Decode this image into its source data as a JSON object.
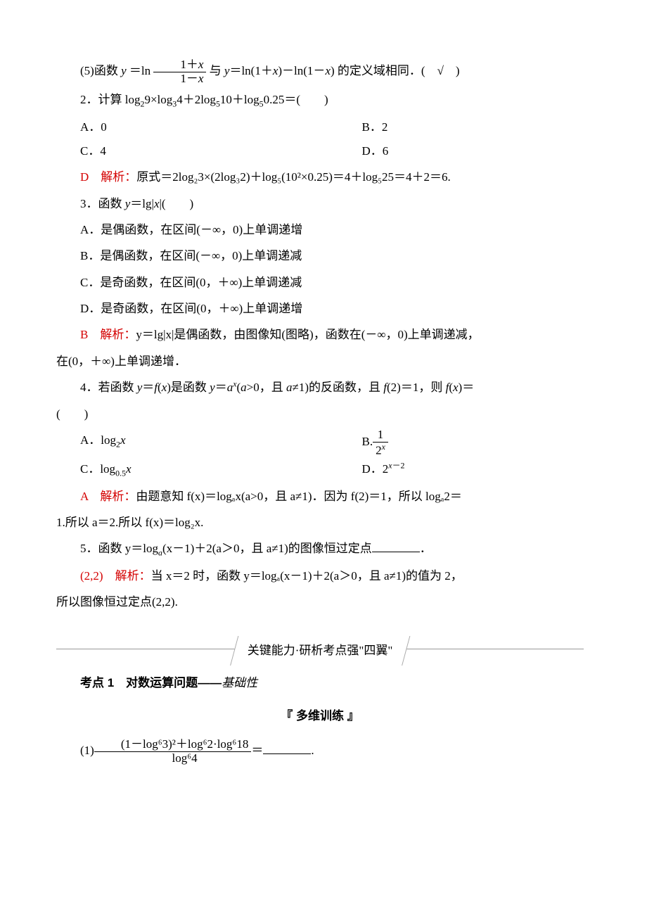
{
  "q15": {
    "prefix": "(5)函数 ",
    "lhs_y": "y",
    "eq": "＝ln ",
    "frac_num": "1＋x",
    "frac_den": "1－x",
    "mid": "与 ",
    "rhs": "y＝ln(1＋x)－ln(1－x)",
    "suffix": "的定义域相同．(　√　)"
  },
  "q2": {
    "stem_pre": "2．计算 log",
    "sub1": "2",
    "t1": "9×log",
    "sub2": "3",
    "t2": "4＋2log",
    "sub3": "5",
    "t3": "10＋log",
    "sub4": "5",
    "t4": "0.25＝(　　)",
    "A": "A．0",
    "B": "B．2",
    "C": "C．4",
    "D": "D．6",
    "ans": "D",
    "exp_label": "解析：",
    "exp_body": "原式＝2log₂3×(2log₃2)＋log₅(10²×0.25)＝4＋log₅25＝4＋2＝6."
  },
  "q3": {
    "stem": "3．函数 y＝lg|x|(　　)",
    "A": "A．是偶函数，在区间(－∞，0)上单调递增",
    "B": "B．是偶函数，在区间(－∞，0)上单调递减",
    "C": "C．是奇函数，在区间(0，＋∞)上单调递减",
    "D": "D．是奇函数，在区间(0，＋∞)上单调递增",
    "ans": "B",
    "exp_label": "解析：",
    "exp1": "y＝lg|x|是偶函数，由图像知(图略)，函数在(－∞，0)上单调递减，",
    "exp2": "在(0，＋∞)上单调递增．"
  },
  "q4": {
    "stem1": "4．若函数 y＝f(x)是函数 y＝aˣ(a>0，且 a≠1)的反函数，且 f(2)＝1，则 f(x)＝",
    "stem2": "(　　)",
    "A_pre": "A．log",
    "A_sub": "2",
    "A_tail": "x",
    "B_pre": "B.",
    "B_num": "1",
    "B_den": "2ˣ",
    "C_pre": "C．log",
    "C_sub": "0.5",
    "C_tail": "x",
    "D_pre": "D．2",
    "D_sup": "x－2",
    "ans": "A",
    "exp_label": "解析：",
    "exp1": "由题意知 f(x)＝logₐx(a>0，且 a≠1)．因为 f(2)＝1，所以 logₐ2＝",
    "exp2": "1.所以 a＝2.所以 f(x)＝log₂x."
  },
  "q5": {
    "stem_pre": "5．函数 y＝log",
    "stem_sub": "a",
    "stem_tail": "(x－1)＋2(a＞0，且 a≠1)的图像恒过定点",
    "stem_end": "．",
    "ans": "(2,2)",
    "exp_label": "解析：",
    "exp1": "当 x＝2 时，函数 y＝logₐ(x－1)＋2(a＞0，且 a≠1)的值为 2，",
    "exp2": "所以图像恒过定点(2,2)."
  },
  "section_title": "关键能力·研析考点强\"四翼\"",
  "topic": {
    "head": "考点 1　对数运算问题——",
    "tail": "基础性"
  },
  "train_title": "『 多维训练 』",
  "ex1": {
    "pre": "(1)",
    "num": "(1－log⁶3)²＋log⁶2·log⁶18",
    "den": "log⁶4",
    "mid": "＝",
    "end": "."
  }
}
